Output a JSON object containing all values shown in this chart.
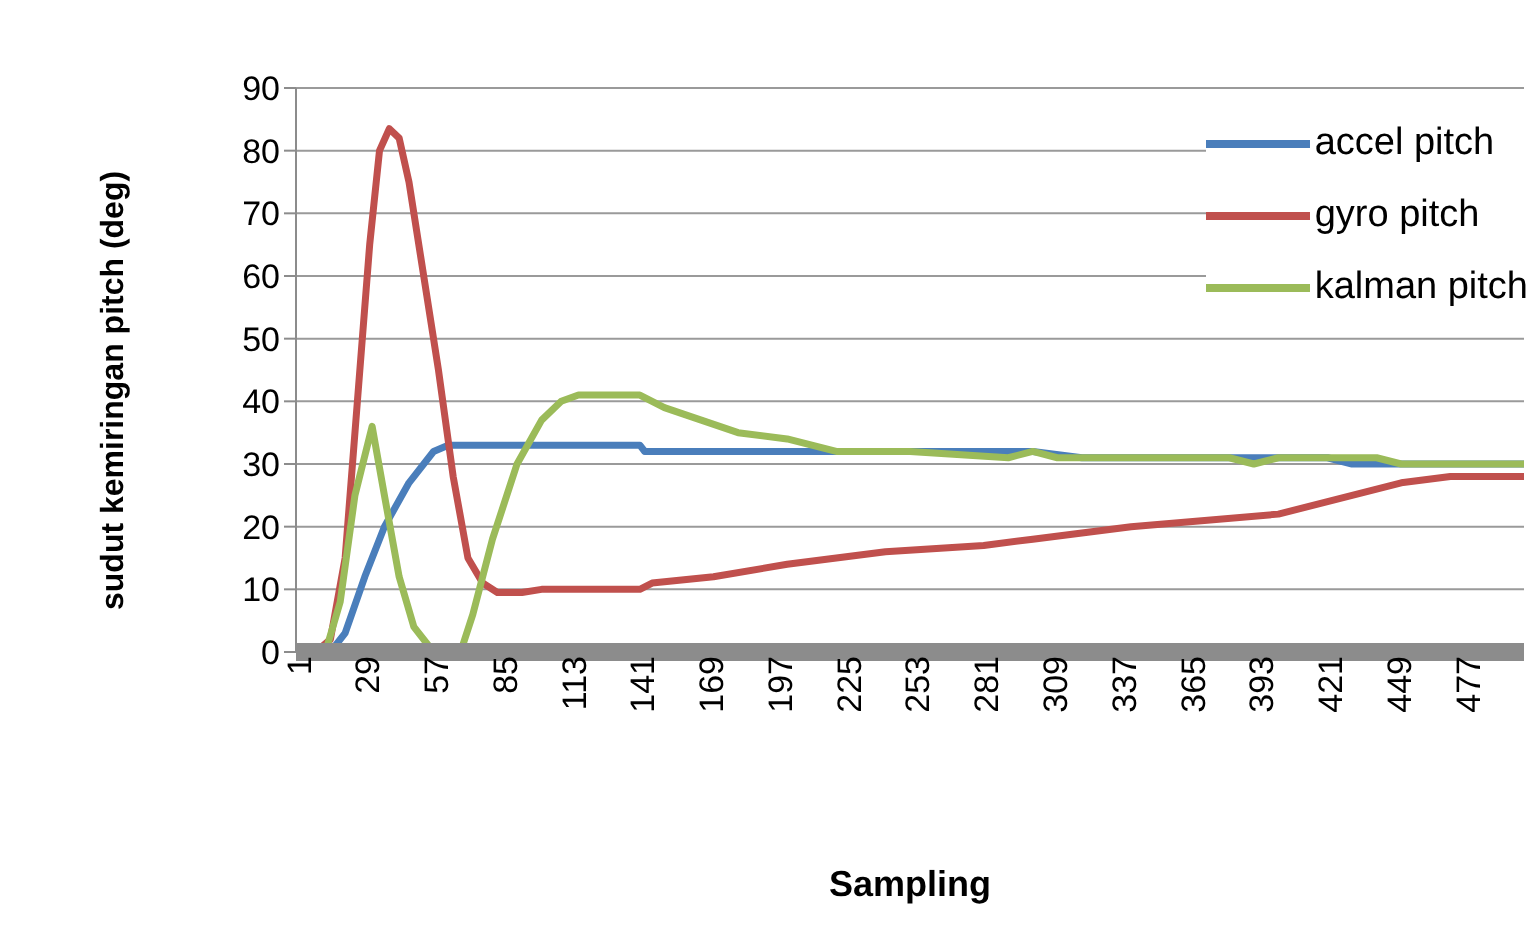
{
  "chart_data": {
    "type": "line",
    "xlabel": "Sampling",
    "ylabel": "sudut kemiringan pitch (deg)",
    "xlim": [
      0,
      500
    ],
    "xticks": [
      1,
      29,
      57,
      85,
      113,
      141,
      169,
      197,
      225,
      253,
      281,
      309,
      337,
      365,
      393,
      421,
      449,
      477
    ],
    "ylim": [
      0,
      90
    ],
    "yticks": [
      0,
      10,
      20,
      30,
      40,
      50,
      60,
      70,
      80,
      90
    ],
    "grid": "y",
    "legend": "top right",
    "marker": "none",
    "line_style": "solid",
    "series": [
      {
        "name": "accel pitch",
        "color": "#4a7ebb",
        "x": [
          1,
          14,
          20,
          28,
          36,
          46,
          56,
          62,
          140,
          142,
          300,
          320,
          420,
          430,
          500
        ],
        "values": [
          0,
          0,
          3,
          12,
          20,
          27,
          32,
          33,
          33,
          32,
          32,
          31,
          31,
          30,
          30
        ]
      },
      {
        "name": "gyro pitch",
        "color": "#c0504d",
        "x": [
          1,
          8,
          14,
          20,
          25,
          30,
          34,
          38,
          42,
          46,
          52,
          58,
          64,
          70,
          76,
          82,
          92,
          100,
          140,
          145,
          170,
          200,
          240,
          280,
          300,
          340,
          400,
          420,
          450,
          470,
          500
        ],
        "values": [
          0,
          0,
          2,
          15,
          40,
          65,
          80,
          83.5,
          82,
          75,
          60,
          45,
          28,
          15,
          11,
          9.5,
          9.5,
          10,
          10,
          11,
          12,
          14,
          16,
          17,
          18,
          20,
          22,
          24,
          27,
          28,
          28
        ]
      },
      {
        "name": "kalman pitch",
        "color": "#9bbb59",
        "x": [
          1,
          12,
          18,
          24,
          31,
          36,
          42,
          48,
          54,
          60,
          67,
          72,
          80,
          90,
          100,
          108,
          115,
          140,
          150,
          165,
          180,
          200,
          220,
          250,
          290,
          300,
          310,
          380,
          390,
          400,
          440,
          450,
          500
        ],
        "values": [
          0,
          0,
          8,
          25,
          36,
          25,
          12,
          4,
          1,
          0,
          0,
          6,
          18,
          30,
          37,
          40,
          41,
          41,
          39,
          37,
          35,
          34,
          32,
          32,
          31,
          32,
          31,
          31,
          30,
          31,
          31,
          30,
          30
        ]
      }
    ]
  }
}
